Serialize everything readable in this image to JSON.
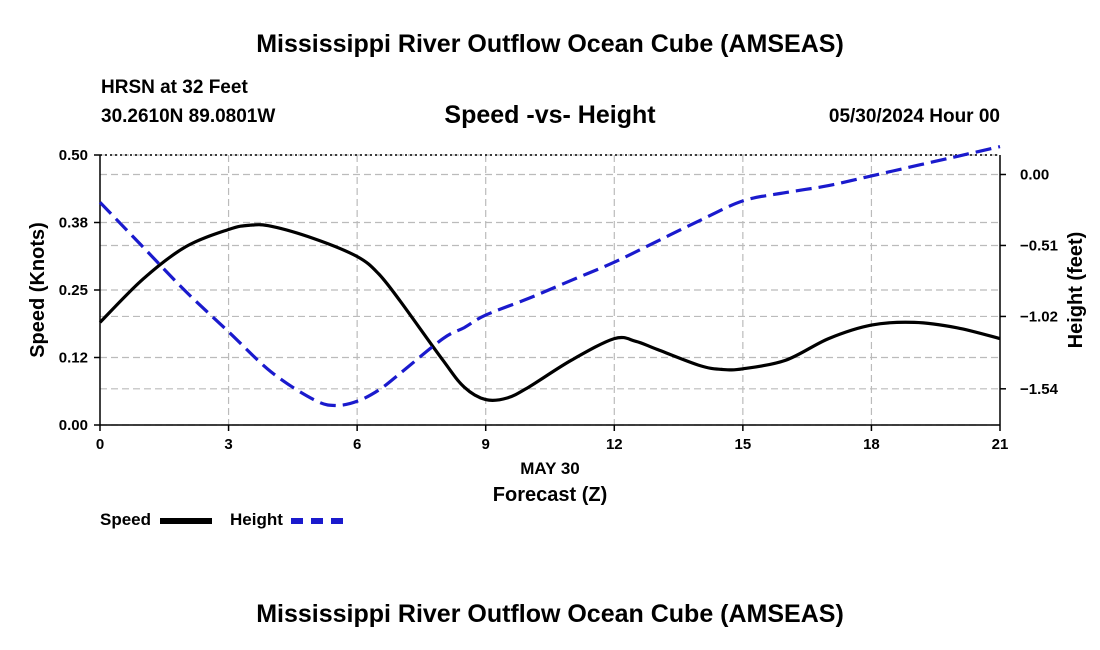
{
  "page_title": "Mississippi River Outflow Ocean Cube (AMSEAS)",
  "footer_title": "Mississippi River Outflow Ocean Cube (AMSEAS)",
  "station": {
    "name": "HRSN at 32 Feet",
    "coords": "30.2610N  89.0801W",
    "datetime": "05/30/2024 Hour 00"
  },
  "chart_data": {
    "type": "line",
    "title": "Speed -vs- Height",
    "xlabel_date": "MAY 30",
    "xlabel": "Forecast (Z)",
    "ylabel_left": "Speed (Knots)",
    "ylabel_right": "Height (feet)",
    "xlim": [
      0,
      21
    ],
    "ylim_left": [
      0,
      0.5
    ],
    "ylim_right": [
      -1.8,
      0.14
    ],
    "x_ticks": [
      0,
      3,
      6,
      9,
      12,
      15,
      18,
      21
    ],
    "x_tick_labels": [
      "0",
      "3",
      "6",
      "9",
      "12",
      "15",
      "18",
      "21"
    ],
    "y_left_ticks": [
      0,
      0.125,
      0.25,
      0.375,
      0.5
    ],
    "y_left_tick_labels": [
      "0.00",
      "0.12",
      "0.25",
      "0.38",
      "0.50"
    ],
    "y_right_ticks": [
      0.0,
      -0.51,
      -1.02,
      -1.54
    ],
    "y_right_tick_labels": [
      "0.00",
      "−0.51",
      "−1.02",
      "−1.54"
    ],
    "grid": true,
    "legend_position": "bottom-left",
    "series": [
      {
        "name": "Speed",
        "axis": "left",
        "color": "#000000",
        "style": "solid",
        "x": [
          0,
          1,
          2,
          3,
          3.5,
          4,
          5,
          6,
          6.5,
          7,
          8,
          8.5,
          9,
          9.5,
          10,
          11,
          12,
          12.5,
          13,
          14,
          14.5,
          15,
          16,
          17,
          18,
          19,
          20,
          21
        ],
        "values": [
          0.19,
          0.27,
          0.33,
          0.362,
          0.37,
          0.368,
          0.345,
          0.312,
          0.28,
          0.23,
          0.12,
          0.07,
          0.047,
          0.05,
          0.07,
          0.12,
          0.16,
          0.155,
          0.14,
          0.11,
          0.103,
          0.104,
          0.12,
          0.16,
          0.185,
          0.19,
          0.18,
          0.16
        ]
      },
      {
        "name": "Height",
        "axis": "right",
        "color": "#1a1acd",
        "style": "dashed",
        "x": [
          0,
          1,
          2,
          3,
          4,
          5,
          5.5,
          6,
          6.5,
          7,
          8,
          8.5,
          9,
          10,
          11,
          12,
          13,
          14,
          15,
          16,
          17,
          18,
          19,
          20,
          21
        ],
        "values": [
          -0.2,
          -0.52,
          -0.84,
          -1.13,
          -1.42,
          -1.62,
          -1.66,
          -1.63,
          -1.55,
          -1.43,
          -1.18,
          -1.1,
          -1.01,
          -0.89,
          -0.76,
          -0.63,
          -0.48,
          -0.33,
          -0.19,
          -0.13,
          -0.08,
          -0.01,
          0.06,
          0.13,
          0.2
        ]
      }
    ]
  },
  "legend": {
    "speed_label": "Speed",
    "height_label": "Height"
  }
}
